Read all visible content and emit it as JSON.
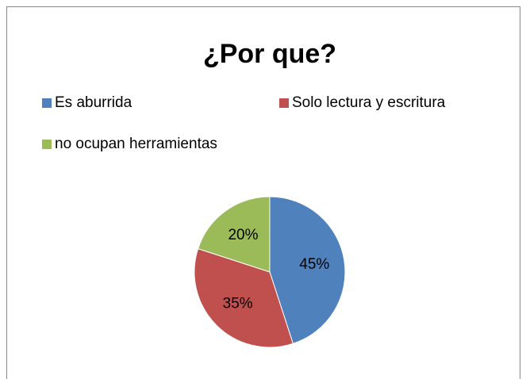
{
  "chart_data": {
    "type": "pie",
    "title": "¿Por que?",
    "categories": [
      "Es aburrida",
      "Solo lectura y escritura",
      "no ocupan herramientas"
    ],
    "values": [
      45,
      35,
      20
    ],
    "value_labels": [
      "45%",
      "35%",
      "20%"
    ],
    "colors": [
      "#4f81bd",
      "#c0504d",
      "#9bbb59"
    ],
    "legend": "top"
  }
}
